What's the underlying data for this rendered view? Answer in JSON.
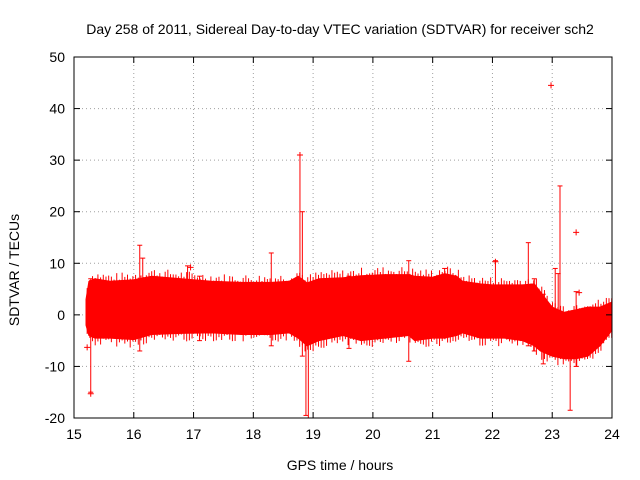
{
  "chart_data": {
    "type": "scatter",
    "title": "Day 258 of 2011, Sidereal Day-to-day VTEC variation (SDTVAR) for receiver sch2",
    "xlabel": "GPS time / hours",
    "ylabel": "SDTVAR / TECUs",
    "xlim": [
      15,
      24
    ],
    "ylim": [
      -20,
      50
    ],
    "xticks": [
      15,
      16,
      17,
      18,
      19,
      20,
      21,
      22,
      23,
      24
    ],
    "yticks": [
      -20,
      -10,
      0,
      10,
      20,
      30,
      40,
      50
    ],
    "xtick_labels": [
      "15",
      "16",
      "17",
      "18",
      "19",
      "20",
      "21",
      "22",
      "23",
      "24"
    ],
    "ytick_labels": [
      "-20",
      "-10",
      "0",
      "10",
      "20",
      "30",
      "40",
      "50"
    ],
    "grid": true,
    "colors": {
      "series": "#ff0000",
      "grid": "#a0a0a0",
      "axis": "#000000"
    },
    "band": {
      "x": [
        15.2,
        15.25,
        15.35,
        15.6,
        16.0,
        16.3,
        16.8,
        17.3,
        17.8,
        18.3,
        18.6,
        18.75,
        18.9,
        19.1,
        19.5,
        19.8,
        20.2,
        20.6,
        20.7,
        21.0,
        21.2,
        21.4,
        21.5,
        21.8,
        22.0,
        22.2,
        22.5,
        22.7,
        22.8,
        22.9,
        23.0,
        23.2,
        23.4,
        23.6,
        23.8,
        24.0
      ],
      "upper": [
        3.0,
        6.5,
        7.0,
        6.5,
        6.8,
        7.5,
        7.0,
        6.5,
        6.3,
        6.3,
        6.5,
        7.5,
        6.2,
        7.0,
        7.2,
        7.6,
        7.8,
        7.8,
        7.5,
        7.3,
        8.0,
        7.5,
        6.5,
        6.0,
        5.8,
        5.8,
        5.8,
        6.0,
        4.5,
        3.0,
        1.5,
        0.5,
        1.0,
        1.5,
        1.5,
        2.5
      ],
      "lower": [
        -2.0,
        -4.0,
        -4.5,
        -4.5,
        -4.8,
        -3.8,
        -3.6,
        -3.5,
        -3.8,
        -3.8,
        -3.5,
        -4.5,
        -6.0,
        -5.0,
        -4.0,
        -5.0,
        -4.5,
        -4.0,
        -5.0,
        -4.5,
        -4.5,
        -4.0,
        -3.5,
        -4.5,
        -4.5,
        -4.5,
        -5.0,
        -6.0,
        -7.0,
        -7.5,
        -8.0,
        -8.5,
        -8.5,
        -8.0,
        -6.0,
        -3.0
      ]
    },
    "spikes": [
      {
        "x": 15.28,
        "low": -15.0,
        "high": 7.0
      },
      {
        "x": 16.1,
        "low": -7.0,
        "high": 13.5
      },
      {
        "x": 16.15,
        "low": -3.0,
        "high": 11.0
      },
      {
        "x": 16.9,
        "low": -3.0,
        "high": 9.5
      },
      {
        "x": 17.1,
        "low": -5.0,
        "high": 7.5
      },
      {
        "x": 18.3,
        "low": -6.0,
        "high": 12.0
      },
      {
        "x": 18.78,
        "low": -4.0,
        "high": 31.0
      },
      {
        "x": 18.82,
        "low": -8.0,
        "high": 20.0
      },
      {
        "x": 18.88,
        "low": -19.5,
        "high": 6.0
      },
      {
        "x": 18.92,
        "low": -20.0,
        "high": 3.0
      },
      {
        "x": 19.6,
        "low": -6.5,
        "high": 7.5
      },
      {
        "x": 20.6,
        "low": -9.0,
        "high": 10.5
      },
      {
        "x": 21.2,
        "low": -3.0,
        "high": 9.0
      },
      {
        "x": 22.05,
        "low": -3.0,
        "high": 10.5
      },
      {
        "x": 22.6,
        "low": -6.0,
        "high": 14.0
      },
      {
        "x": 22.7,
        "low": -7.0,
        "high": 7.0
      },
      {
        "x": 22.85,
        "low": -9.5,
        "high": 4.0
      },
      {
        "x": 23.05,
        "low": -8.0,
        "high": 9.0
      },
      {
        "x": 23.1,
        "low": -8.0,
        "high": 8.0
      },
      {
        "x": 23.13,
        "low": -7.0,
        "high": 25.0
      },
      {
        "x": 23.3,
        "low": -18.5,
        "high": 0.5
      },
      {
        "x": 23.4,
        "low": -10.0,
        "high": 4.5
      }
    ],
    "points": [
      {
        "x": 15.28,
        "y": -15.3
      },
      {
        "x": 15.22,
        "y": -6.3
      },
      {
        "x": 16.95,
        "y": 9.2
      },
      {
        "x": 22.05,
        "y": 10.3
      },
      {
        "x": 22.98,
        "y": 44.5
      },
      {
        "x": 23.4,
        "y": 16.0
      },
      {
        "x": 23.45,
        "y": 4.3
      },
      {
        "x": 18.78,
        "y": 31.0
      }
    ]
  }
}
